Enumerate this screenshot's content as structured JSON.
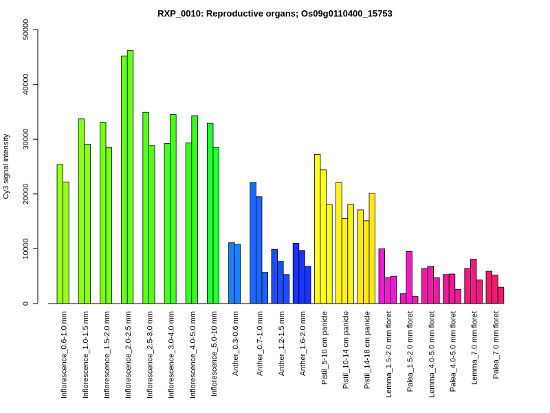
{
  "chart_data": {
    "type": "bar",
    "title": "RXP_0010: Reproductive organs; Os09g0110400_15753",
    "xlabel": "",
    "ylabel": "Cy3 signal intensity",
    "ylim": [
      0,
      50000
    ],
    "yticks": [
      0,
      10000,
      20000,
      30000,
      40000,
      50000
    ],
    "grid": false,
    "legend": "none",
    "groups": [
      {
        "label": "Inflorescence_0.6-1.0 mm",
        "values": [
          25400,
          22200
        ],
        "color": "#99ff1a"
      },
      {
        "label": "Inflorescence_1.0-1.5 mm",
        "values": [
          33700,
          29100
        ],
        "color": "#88ff1a"
      },
      {
        "label": "Inflorescence_1.5-2.0 mm",
        "values": [
          33100,
          28500
        ],
        "color": "#77ff1a"
      },
      {
        "label": "Inflorescence_2.0-2.5 mm",
        "values": [
          45200,
          46200
        ],
        "color": "#66ff1a"
      },
      {
        "label": "Inflorescence_2.5-3.0 mm",
        "values": [
          34900,
          28800
        ],
        "color": "#55ff1a"
      },
      {
        "label": "Inflorescence_3.0-4.0 mm",
        "values": [
          29200,
          34500
        ],
        "color": "#44ff1a"
      },
      {
        "label": "Inflorescence_4.0-5.0 mm",
        "values": [
          29300,
          34300
        ],
        "color": "#33ff1a"
      },
      {
        "label": "Inflorescence_5.0-10 mm",
        "values": [
          32900,
          28500
        ],
        "color": "#22ff33"
      },
      {
        "label": "Anther_0.3-0.6 mm",
        "values": [
          11100,
          10800
        ],
        "color": "#1a80ff"
      },
      {
        "label": "Anther_0.7-1.0 mm",
        "values": [
          22100,
          19500,
          5700
        ],
        "color": "#1a66ff"
      },
      {
        "label": "Anther_1.2-1.5 mm",
        "values": [
          9900,
          7700,
          5300
        ],
        "color": "#1a4dff"
      },
      {
        "label": "Anther_1.6-2.0 mm",
        "values": [
          11000,
          9700,
          6800
        ],
        "color": "#1a33ff"
      },
      {
        "label": "Pistil_5-10 cm panicle",
        "values": [
          27200,
          24400,
          18100
        ],
        "color": "#ffff1a"
      },
      {
        "label": "Pistil_10-14 cm panicle",
        "values": [
          22100,
          15500,
          18100
        ],
        "color": "#fff21a"
      },
      {
        "label": "Pistil_14-18 cm panicle",
        "values": [
          17100,
          15100,
          20100
        ],
        "color": "#ffe61a"
      },
      {
        "label": "Lemma_1.5-2.0 mm floret",
        "values": [
          10000,
          4700,
          5000
        ],
        "color": "#ee1ad5"
      },
      {
        "label": "Palea_1.5-2.0 mm floret",
        "values": [
          1800,
          9500,
          1300
        ],
        "color": "#ee1ac0"
      },
      {
        "label": "Lemma_4.0-5.0 mm floret",
        "values": [
          6400,
          6800,
          4700
        ],
        "color": "#ee1aaa"
      },
      {
        "label": "Palea_4.0-5.0 mm floret",
        "values": [
          5300,
          5400,
          2600
        ],
        "color": "#ee1a95"
      },
      {
        "label": "Lemma_7.0 mm floret",
        "values": [
          6400,
          8100,
          4300
        ],
        "color": "#ee1a80"
      },
      {
        "label": "Palea_7.0 mm floret",
        "values": [
          5900,
          5200,
          3000
        ],
        "color": "#ee1a6b"
      }
    ]
  }
}
